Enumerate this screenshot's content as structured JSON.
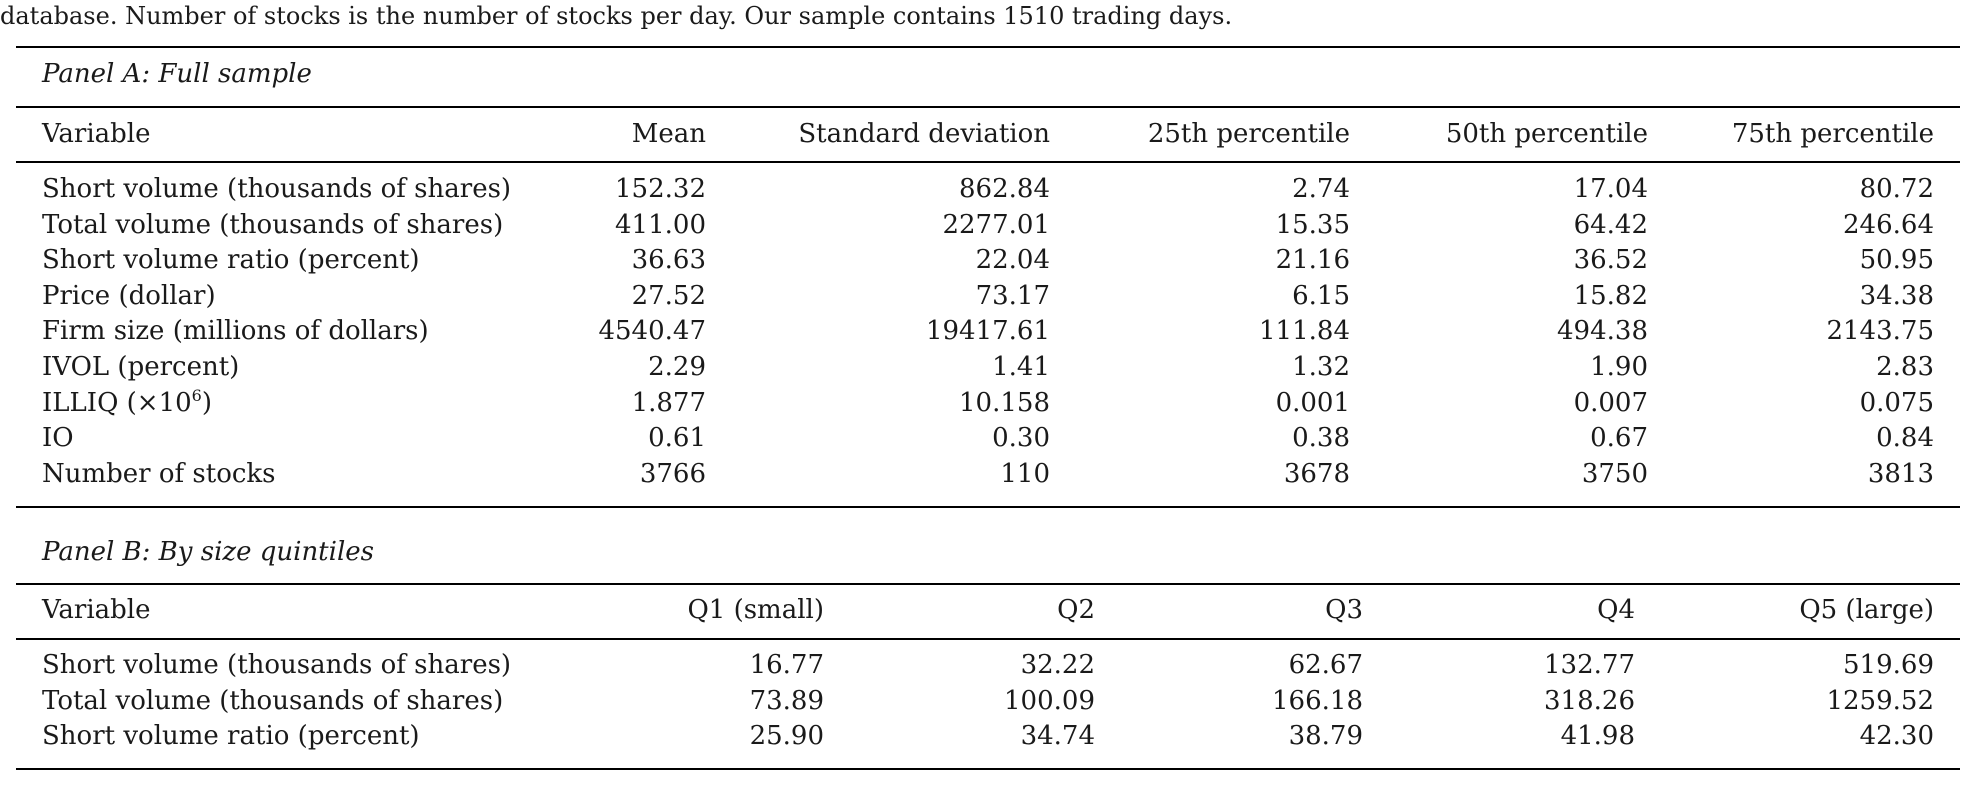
{
  "caption": "database. Number of stocks is the number of stocks per day. Our sample contains 1510 trading days.",
  "panel_a": {
    "title": "Panel A: Full sample",
    "headers": [
      "Variable",
      "Mean",
      "Standard deviation",
      "25th percentile",
      "50th percentile",
      "75th percentile"
    ],
    "rows": [
      [
        "Short volume (thousands of shares)",
        "152.32",
        "862.84",
        "2.74",
        "17.04",
        "80.72"
      ],
      [
        "Total volume (thousands of shares)",
        "411.00",
        "2277.01",
        "15.35",
        "64.42",
        "246.64"
      ],
      [
        "Short volume ratio (percent)",
        "36.63",
        "22.04",
        "21.16",
        "36.52",
        "50.95"
      ],
      [
        "Price (dollar)",
        "27.52",
        "73.17",
        "6.15",
        "15.82",
        "34.38"
      ],
      [
        "Firm size (millions of dollars)",
        "4540.47",
        "19417.61",
        "111.84",
        "494.38",
        "2143.75"
      ],
      [
        "IVOL (percent)",
        "2.29",
        "1.41",
        "1.32",
        "1.90",
        "2.83"
      ],
      [
        "ILLIQ (×10",
        "1.877",
        "10.158",
        "0.001",
        "0.007",
        "0.075"
      ],
      [
        "IO",
        "0.61",
        "0.30",
        "0.38",
        "0.67",
        "0.84"
      ],
      [
        "Number of stocks",
        "3766",
        "110",
        "3678",
        "3750",
        "3813"
      ]
    ],
    "illiq_exponent": "6",
    "illiq_close": ")"
  },
  "panel_b": {
    "title": "Panel B: By size quintiles",
    "headers": [
      "Variable",
      "Q1 (small)",
      "Q2",
      "Q3",
      "Q4",
      "Q5 (large)"
    ],
    "rows": [
      [
        "Short volume (thousands of shares)",
        "16.77",
        "32.22",
        "62.67",
        "132.77",
        "519.69"
      ],
      [
        "Total volume (thousands of shares)",
        "73.89",
        "100.09",
        "166.18",
        "318.26",
        "1259.52"
      ],
      [
        "Short volume ratio (percent)",
        "25.90",
        "34.74",
        "38.79",
        "41.98",
        "42.30"
      ]
    ]
  }
}
